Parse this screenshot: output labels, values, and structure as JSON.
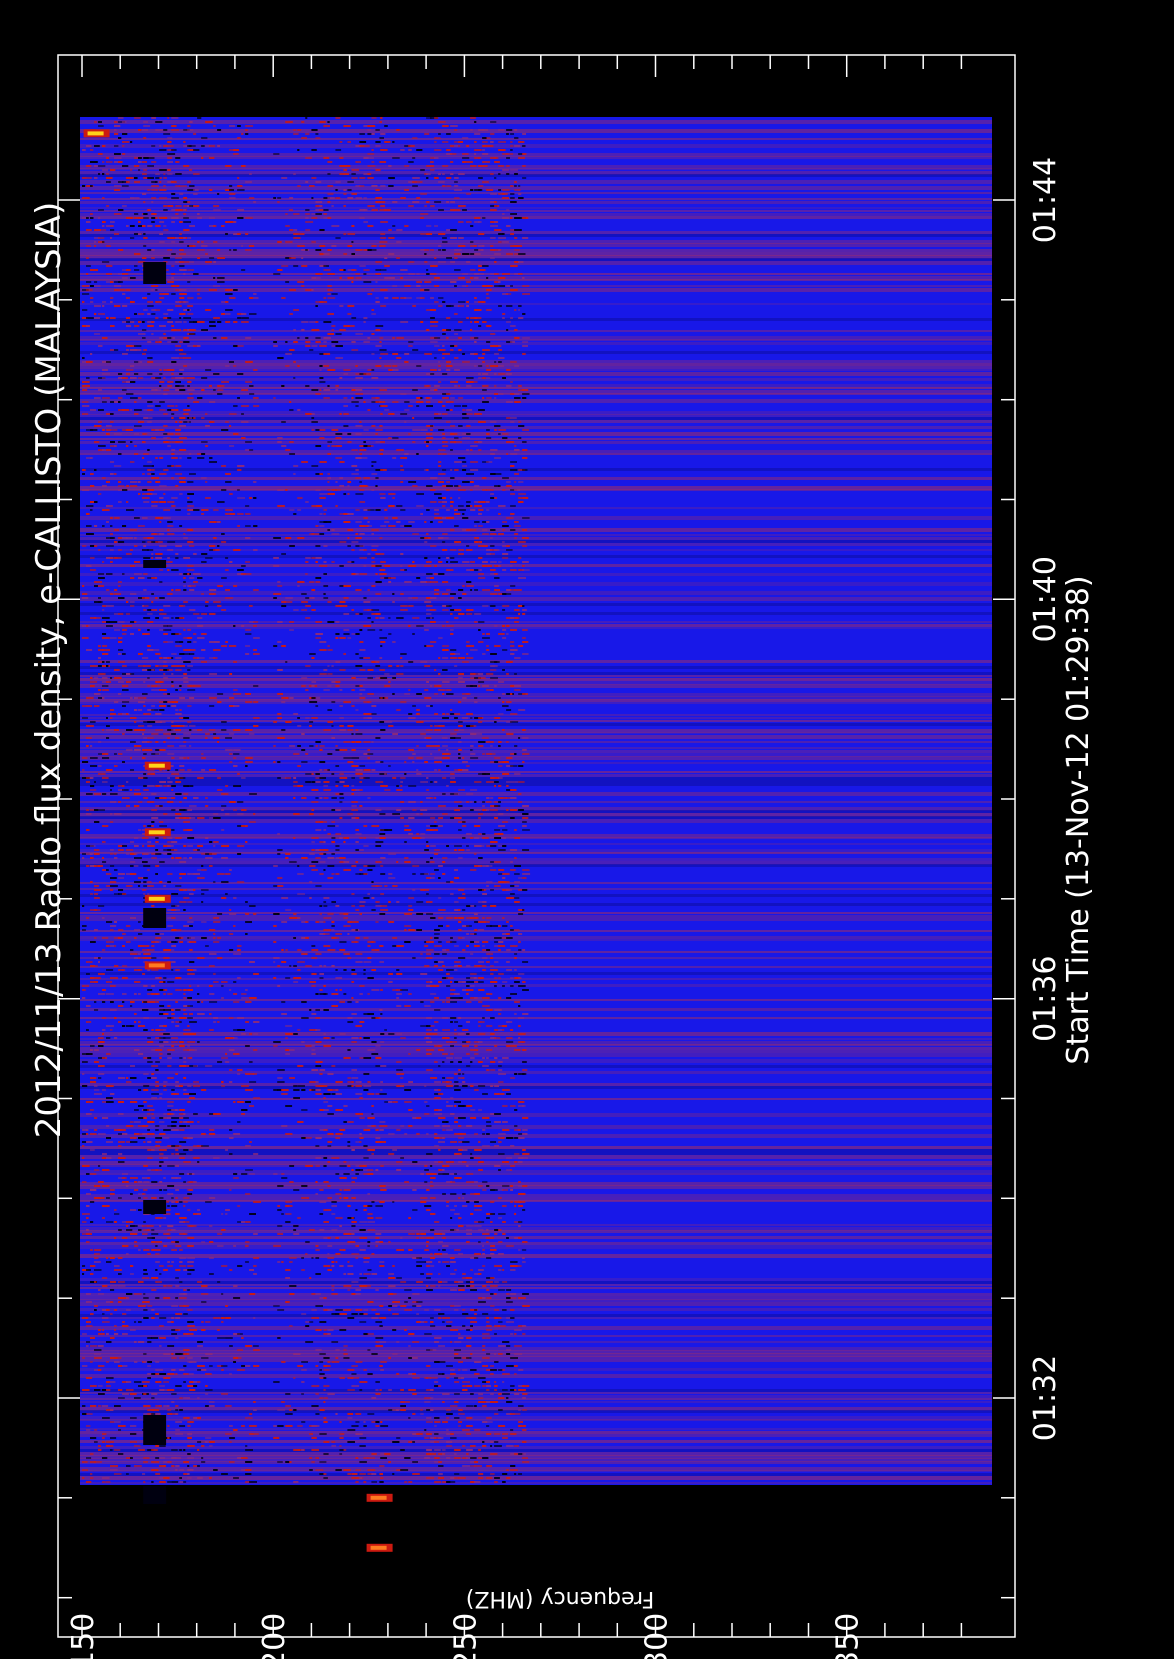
{
  "chart_data": {
    "type": "heatmap",
    "title": "2012/11/13  Radio flux density, e-CALLISTO (MALAYSIA)",
    "xlabel": "Frequency (MHZ)",
    "ylabel": "Start Time (13-Nov-12 01:29:38)",
    "frequency_range_mhz": [
      150,
      388
    ],
    "time_range_minutes_after_0129": [
      -0.7,
      15.7
    ],
    "frequency_ticks": [
      "150",
      "200",
      "250",
      "300",
      "350"
    ],
    "frequency_tick_values": [
      150,
      200,
      250,
      300,
      350
    ],
    "time_ticks": [
      "01:32",
      "01:36",
      "01:40",
      "01:44"
    ],
    "time_tick_values": [
      3,
      7,
      11,
      15
    ],
    "grid": false,
    "colors": {
      "background": "#000000",
      "low": "#1818e8",
      "mid": "#8b2a7a",
      "high": "#cc1a10",
      "peak": "#ffd21a",
      "gap": "#000010"
    },
    "bursts": [
      {
        "time": "01:44:40",
        "freq_mhz": 152,
        "intensity": "peak"
      },
      {
        "time": "01:38:20",
        "freq_mhz": 168,
        "intensity": "peak"
      },
      {
        "time": "01:37:40",
        "freq_mhz": 168,
        "intensity": "peak"
      },
      {
        "time": "01:37:00",
        "freq_mhz": 168,
        "intensity": "peak"
      },
      {
        "time": "01:36:20",
        "freq_mhz": 168,
        "intensity": "high"
      },
      {
        "time": "01:30:30",
        "freq_mhz": 226,
        "intensity": "high"
      },
      {
        "time": "01:31:00",
        "freq_mhz": 226,
        "intensity": "high"
      }
    ]
  }
}
